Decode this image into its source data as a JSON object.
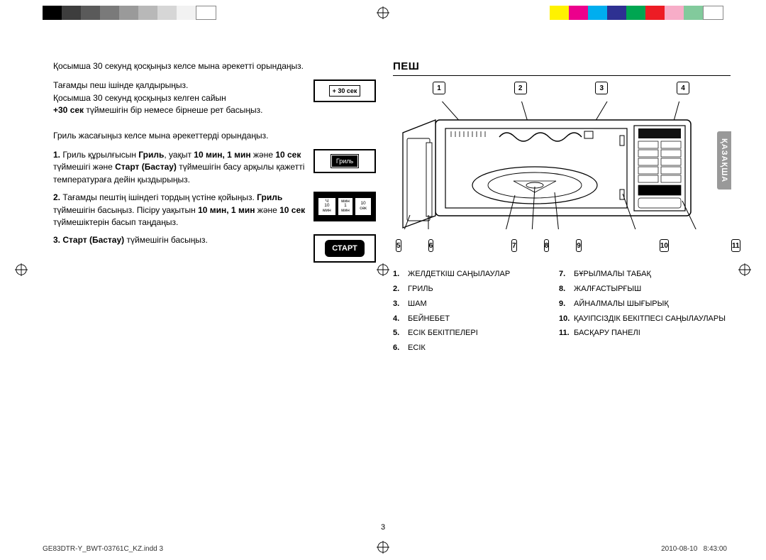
{
  "colorbar_left": [
    "#000000",
    "#3d3d3d",
    "#5a5a5a",
    "#7a7a7a",
    "#9a9a9a",
    "#b8b8b8",
    "#d6d6d6",
    "#f2f2f2",
    "#ffffff"
  ],
  "colorbar_right": [
    "#fff200",
    "#ec008c",
    "#00aeef",
    "#2e3192",
    "#00a651",
    "#ed1c24",
    "#f7adc8",
    "#82ca9c",
    "#ffffff"
  ],
  "left": {
    "intro1": "Қосымша 30 секунд қосқыңыз келсе мына әрекетті орындаңыз.",
    "intro2_l1": "Тағамды пеш ішінде қалдырыңыз.",
    "intro2_l2": "Қосымша 30 секунд қосқыңыз келген сайын",
    "intro2_b": "+30 сек",
    "intro2_l3": " түймешігін бір немесе бірнеше рет басыңыз.",
    "btn30": "+ 30 сек",
    "grill_intro": "Гриль жасағыңыз келсе мына әрекеттерді орындаңыз.",
    "s1_num": "1.",
    "s1_text_a": "Гриль құрылғысын ",
    "s1_b1": "Гриль",
    "s1_text_b": ", уақыт ",
    "s1_b2": "10 мин, 1 мин",
    "s1_text_c": " және ",
    "s1_b3": "10 сек",
    "s1_text_d": " түймешігі және ",
    "s1_b4": "Старт (Бастау)",
    "s1_text_e": " түймешігін басу арқылы қажетті температураға дейін қыздырыңыз.",
    "s1_btn": "Гриль",
    "s2_num": "2.",
    "s2_text_a": "Тағамды пештің ішіндегі тордың үстіне қойыңыз. ",
    "s2_b1": "Гриль",
    "s2_text_b": " түймешігін басыңыз. Пісіру уақытын ",
    "s2_b2": "10 мин, 1 мин",
    "s2_text_c": " және ",
    "s2_b3": "10 сек",
    "s2_text_d": " түймешіктерін басып таңдаңыз.",
    "s2_btn_a_top": "Ч",
    "s2_btn_a_bot": "10 мин",
    "s2_btn_b_top": "мин",
    "s2_btn_b_bot": "1 мин",
    "s2_btn_c": "10 сек",
    "s3_num": "3.",
    "s3_b": "Старт (Бастау)",
    "s3_text": " түймешігін басыңыз.",
    "s3_btn": "СТАРТ"
  },
  "right": {
    "title": "ПЕШ",
    "side_tab": "ҚАЗАҚША",
    "callouts_top": [
      "1",
      "2",
      "3",
      "4"
    ],
    "callouts_bot": [
      "5",
      "6",
      "7",
      "8",
      "9",
      "10",
      "11"
    ],
    "legend_left": [
      {
        "n": "1.",
        "t": "ЖЕЛДЕТКІШ САҢЫЛАУЛАР"
      },
      {
        "n": "2.",
        "t": "ГРИЛЬ"
      },
      {
        "n": "3.",
        "t": "ШАМ"
      },
      {
        "n": "4.",
        "t": "БЕЙНЕБЕТ"
      },
      {
        "n": "5.",
        "t": "ЕСІК БЕКІТПЕЛЕРІ"
      },
      {
        "n": "6.",
        "t": "ЕСІК"
      }
    ],
    "legend_right": [
      {
        "n": "7.",
        "t": "БҰРЫЛМАЛЫ ТАБАҚ"
      },
      {
        "n": "8.",
        "t": "ЖАЛҒАСТЫРҒЫШ"
      },
      {
        "n": "9.",
        "t": "АЙНАЛМАЛЫ ШЫҒЫРЫҚ"
      },
      {
        "n": "10.",
        "t": "ҚАУІПСІЗДІК БЕКІТПЕСІ САҢЫЛАУЛАРЫ"
      },
      {
        "n": "11.",
        "t": "БАСҚАРУ ПАНЕЛІ"
      }
    ]
  },
  "page_number": "3",
  "footer_file": "GE83DTR-Y_BWT-03761C_KZ.indd   3",
  "footer_date": "2010-08-10",
  "footer_time": "8:43:00"
}
